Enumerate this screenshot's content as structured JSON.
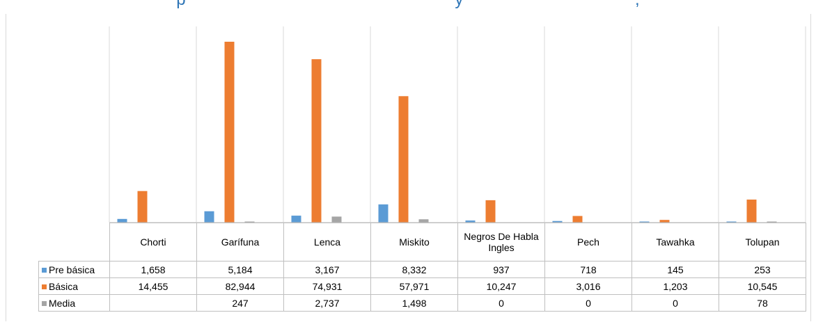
{
  "chart_data": {
    "type": "bar",
    "title": "p                                                          y                                     ,",
    "categories": [
      "Chorti",
      "Garífuna",
      "Lenca",
      "Miskito",
      "Negros De Habla Ingles",
      "Pech",
      "Tawahka",
      "Tolupan"
    ],
    "series": [
      {
        "name": "Pre básica",
        "color": "#5B9BD5",
        "values": [
          1658,
          5184,
          3167,
          8332,
          937,
          718,
          145,
          253
        ],
        "labels": [
          "1,658",
          "5,184",
          "3,167",
          "8,332",
          "937",
          "718",
          "145",
          "253"
        ]
      },
      {
        "name": "Básica",
        "color": "#ED7D31",
        "values": [
          14455,
          82944,
          74931,
          57971,
          10247,
          3016,
          1203,
          10545
        ],
        "labels": [
          "14,455",
          "82,944",
          "74,931",
          "57,971",
          "10,247",
          "3,016",
          "1,203",
          "10,545"
        ]
      },
      {
        "name": "Media",
        "color": "#A5A5A5",
        "values": [
          null,
          247,
          2737,
          1498,
          0,
          0,
          0,
          78
        ],
        "labels": [
          "",
          "247",
          "2,737",
          "1,498",
          "0",
          "0",
          "0",
          "78"
        ]
      }
    ],
    "ylim": [
      0,
      90000
    ],
    "grid": "vertical category separators",
    "legend": "in data table"
  }
}
